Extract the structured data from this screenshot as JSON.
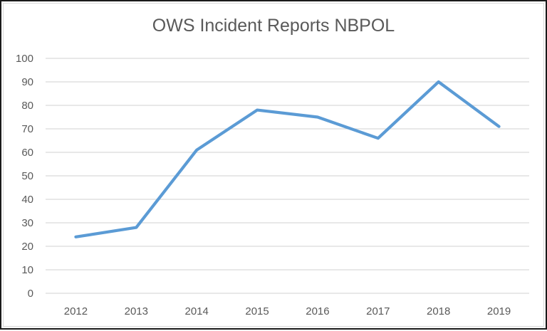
{
  "chart_data": {
    "type": "line",
    "title": "OWS Incident Reports NBPOL",
    "xlabel": "",
    "ylabel": "",
    "categories": [
      "2012",
      "2013",
      "2014",
      "2015",
      "2016",
      "2017",
      "2018",
      "2019"
    ],
    "series": [
      {
        "name": "OWS Incident Reports",
        "values": [
          24,
          28,
          61,
          78,
          75,
          66,
          90,
          71
        ],
        "color": "#5B9BD5"
      }
    ],
    "ylim": [
      0,
      100
    ],
    "yticks": [
      0,
      10,
      20,
      30,
      40,
      50,
      60,
      70,
      80,
      90,
      100
    ],
    "grid": true,
    "legend": "none"
  },
  "colors": {
    "line": "#5B9BD5",
    "gridline": "#D9D9D9",
    "text": "#595959"
  }
}
